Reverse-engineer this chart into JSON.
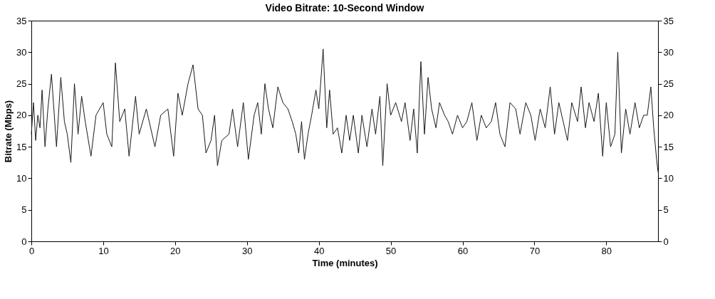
{
  "chart_data": {
    "type": "line",
    "title": "Video Bitrate: 10-Second Window",
    "xlabel": "Time (minutes)",
    "ylabel": "Bitrate (Mbps)",
    "xlim": [
      0,
      87.2
    ],
    "xticks": [
      0,
      10,
      20,
      30,
      40,
      50,
      60,
      70,
      80
    ],
    "ylim": [
      0,
      35
    ],
    "yticks": [
      0,
      5,
      10,
      15,
      20,
      25,
      30,
      35
    ],
    "y2lim": [
      0,
      35
    ],
    "y2ticks": [
      0,
      5,
      10,
      15,
      20,
      25,
      30,
      35
    ],
    "grid": false,
    "legend": false,
    "marker": "none",
    "line_style": "solid",
    "series": [
      {
        "color": "#1a1a1a",
        "x": [
          0,
          0.3,
          0.6,
          0.9,
          1.2,
          1.5,
          1.9,
          2.3,
          2.8,
          3.5,
          4.1,
          4.6,
          5,
          5.5,
          6,
          6.5,
          7,
          7.5,
          8.3,
          9,
          10,
          10.5,
          11.2,
          11.7,
          12.3,
          13,
          13.6,
          14.5,
          15,
          16,
          17.2,
          18,
          19,
          19.8,
          20.4,
          21,
          21.8,
          22.5,
          23.2,
          23.8,
          24.3,
          25,
          25.5,
          25.9,
          26.5,
          27.5,
          28,
          28.7,
          29.5,
          30.2,
          31,
          31.5,
          32,
          32.5,
          33,
          33.6,
          34.3,
          35,
          35.7,
          36.3,
          36.8,
          37.2,
          37.6,
          38,
          38.5,
          39,
          39.6,
          40,
          40.6,
          41.1,
          41.5,
          42,
          42.6,
          43.2,
          43.8,
          44.3,
          44.8,
          45.5,
          46,
          46.7,
          47.4,
          47.9,
          48.5,
          48.9,
          49.5,
          50,
          50.7,
          51.5,
          52,
          52.7,
          53.2,
          53.7,
          54.2,
          54.7,
          55.2,
          55.7,
          56.3,
          56.8,
          57.5,
          58,
          58.6,
          59.3,
          60,
          60.6,
          61.3,
          62,
          62.6,
          63.3,
          64,
          64.6,
          65.2,
          65.9,
          66.6,
          67.4,
          68,
          68.8,
          69.5,
          70.1,
          70.8,
          71.5,
          72.2,
          72.8,
          73.4,
          74,
          74.6,
          75.2,
          76,
          76.5,
          77.1,
          77.6,
          78.3,
          78.9,
          79.5,
          80,
          80.6,
          81.2,
          81.6,
          82.1,
          82.7,
          83.3,
          84,
          84.6,
          85.2,
          85.7,
          86.2,
          86.6,
          87.0,
          87.2
        ],
        "values": [
          17,
          22,
          16,
          20,
          18,
          24,
          15,
          21,
          26.5,
          15,
          26,
          19,
          17,
          12.5,
          25,
          17,
          23,
          19,
          13.5,
          20,
          22,
          17,
          15,
          28.3,
          19,
          21,
          13.5,
          23,
          17,
          21,
          15,
          20,
          21,
          13.5,
          23.5,
          20,
          25,
          28,
          21,
          20,
          14,
          16,
          20,
          12,
          16,
          17,
          21,
          15,
          22,
          13,
          20,
          22,
          17,
          25,
          21,
          18,
          24.5,
          22,
          21,
          19,
          17,
          14,
          19,
          13,
          17,
          20,
          24,
          21,
          30.5,
          18,
          24,
          17,
          18,
          14,
          20,
          16,
          20,
          14,
          20,
          15,
          21,
          17,
          23,
          12,
          25,
          20,
          22,
          19,
          22,
          16,
          21,
          14,
          28.5,
          17,
          26,
          21,
          18,
          22,
          20,
          19,
          17,
          20,
          18,
          19,
          22,
          16,
          20,
          18,
          19,
          22,
          17,
          15,
          22,
          21,
          17,
          22,
          20,
          16,
          21,
          18,
          24.5,
          17,
          22,
          19,
          16,
          22,
          19,
          24.5,
          18,
          22,
          19,
          23.5,
          13.5,
          22,
          15,
          17,
          30,
          14,
          21,
          17,
          22,
          18,
          20,
          20,
          24.5,
          18,
          13,
          11
        ]
      }
    ]
  }
}
